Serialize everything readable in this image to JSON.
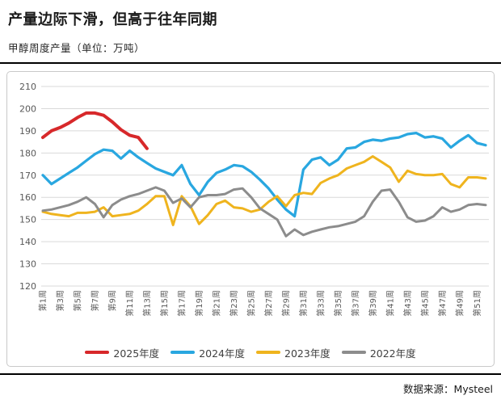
{
  "header": {
    "title": "产量边际下滑，但高于往年同期",
    "subtitle": "甲醇周度产量（单位：万吨）"
  },
  "footer": {
    "source_label": "数据来源：Mysteel"
  },
  "chart_data": {
    "type": "line",
    "title": "甲醇周度产量（单位：万吨）",
    "ylabel": "万吨",
    "ylim": [
      120,
      210
    ],
    "y_ticks": [
      120,
      130,
      140,
      150,
      160,
      170,
      180,
      190,
      200,
      210
    ],
    "grid": true,
    "legend_position": "bottom",
    "x_tick_weeks": [
      1,
      3,
      5,
      7,
      9,
      11,
      13,
      15,
      17,
      19,
      21,
      23,
      25,
      27,
      29,
      31,
      33,
      35,
      37,
      39,
      41,
      43,
      45,
      47,
      49,
      51
    ],
    "x_tick_labels": [
      "第1周",
      "第3周",
      "第5周",
      "第7周",
      "第9周",
      "第11周",
      "第13周",
      "第15周",
      "第17周",
      "第19周",
      "第21周",
      "第23周",
      "第25周",
      "第27周",
      "第29周",
      "第31周",
      "第33周",
      "第35周",
      "第37周",
      "第39周",
      "第41周",
      "第43周",
      "第45周",
      "第47周",
      "第49周",
      "第51周"
    ],
    "series": [
      {
        "name": "2025年度",
        "color": "#d7282a",
        "values": [
          187,
          190,
          191.5,
          193.5,
          196,
          198,
          198,
          197,
          194,
          190.5,
          188,
          187,
          182
        ]
      },
      {
        "name": "2024年度",
        "color": "#29a7e0",
        "values": [
          170,
          166,
          168.5,
          171,
          173.5,
          176.5,
          179.5,
          181.5,
          181,
          177.5,
          181,
          178,
          175.5,
          173,
          171.5,
          170,
          174.5,
          166,
          161,
          167,
          171,
          172.5,
          174.5,
          174,
          171.5,
          168,
          164,
          159,
          154.5,
          151.5,
          172.5,
          177,
          178,
          174.5,
          177,
          182,
          182.5,
          185,
          186,
          185.5,
          186.5,
          187,
          188.5,
          189,
          187,
          187.5,
          186.5,
          182.5,
          185.5,
          188,
          184.5,
          183.5
        ]
      },
      {
        "name": "2023年度",
        "color": "#efb41e",
        "values": [
          153.5,
          152.5,
          152,
          151.5,
          153,
          153,
          153.5,
          155.5,
          151.5,
          152,
          152.5,
          154,
          157,
          160.5,
          160.5,
          147.5,
          160.5,
          156,
          148,
          152,
          157,
          158.5,
          155.5,
          155,
          153.5,
          154.5,
          158,
          160.5,
          156,
          161,
          162,
          161.5,
          166.5,
          168.5,
          170,
          173,
          174.5,
          176,
          178.5,
          176,
          173.5,
          167,
          172,
          170.5,
          170,
          170,
          170.5,
          166,
          164.5,
          169,
          169,
          168.5
        ]
      },
      {
        "name": "2022年度",
        "color": "#8c8c8c",
        "values": [
          154,
          154.5,
          155.5,
          156.5,
          158,
          160,
          157,
          151,
          156.5,
          159,
          160.5,
          161.5,
          163,
          164.5,
          163,
          157.5,
          159.5,
          155.5,
          160,
          161,
          161,
          161.5,
          163.5,
          164,
          160,
          155,
          152.5,
          150,
          142.5,
          145.5,
          143,
          144.5,
          145.5,
          146.5,
          147,
          148,
          149,
          151.5,
          158,
          163,
          163.5,
          158,
          151,
          149,
          149.5,
          151.5,
          155.5,
          153.5,
          154.5,
          156.5,
          157,
          156.5
        ]
      }
    ]
  }
}
